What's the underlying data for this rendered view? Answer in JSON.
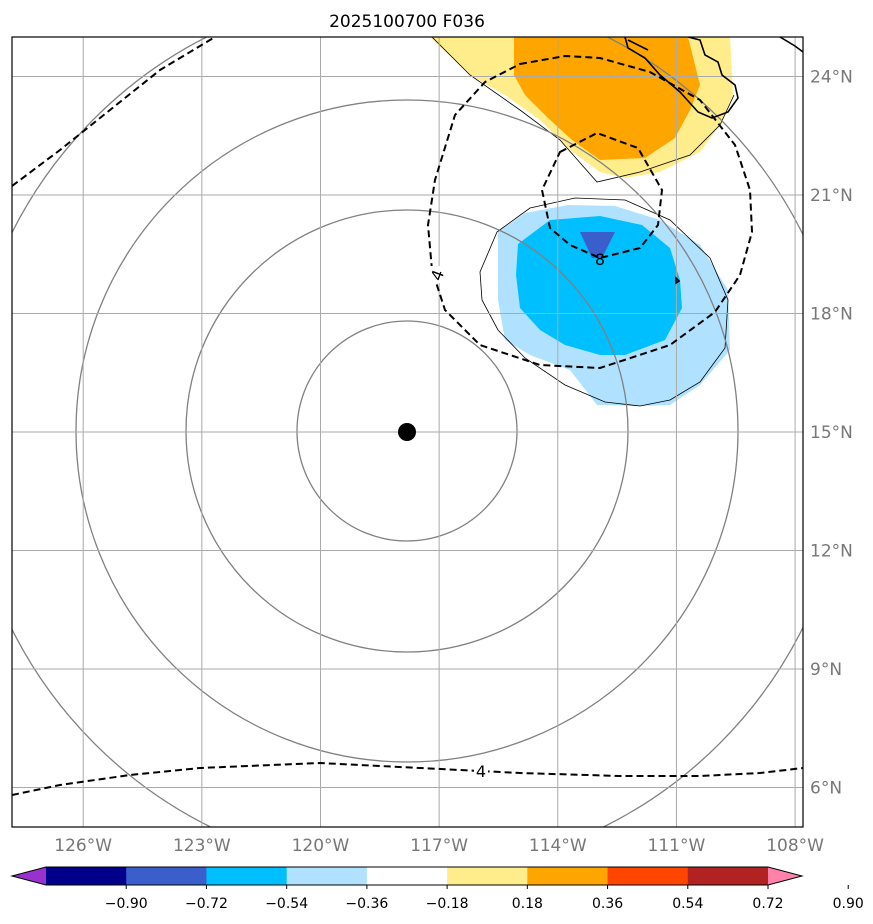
{
  "title": "2025100700 F036",
  "map": {
    "longitude_ticks": [
      "126°W",
      "123°W",
      "120°W",
      "117°W",
      "114°W",
      "111°W",
      "108°W"
    ],
    "latitude_ticks": [
      "24°N",
      "21°N",
      "18°N",
      "15°N",
      "12°N",
      "9°N",
      "6°N"
    ],
    "lon_range_deg": [
      -127.8,
      -107.8
    ],
    "lat_range_deg": [
      5.0,
      25.0
    ],
    "storm_center": {
      "lon": -118.0,
      "lat": 15.0
    },
    "dashed_contour_labels": [
      "4",
      "8",
      "4"
    ],
    "grid": true
  },
  "colorbar": {
    "tick_labels": [
      "−0.90",
      "−0.72",
      "−0.54",
      "−0.36",
      "−0.18",
      "0.18",
      "0.36",
      "0.54",
      "0.72",
      "0.90"
    ],
    "colors": [
      "#9932CC",
      "#00008B",
      "#3A5FCD",
      "#00BFFF",
      "#B0E2FF",
      "#FFFFFF",
      "#FFEC8B",
      "#FFA500",
      "#FF4500",
      "#B22222",
      "#FF82AB"
    ]
  },
  "colors": {
    "grid": "#aaaaaa",
    "radial_rings": "#808080",
    "coast": "#000000"
  }
}
